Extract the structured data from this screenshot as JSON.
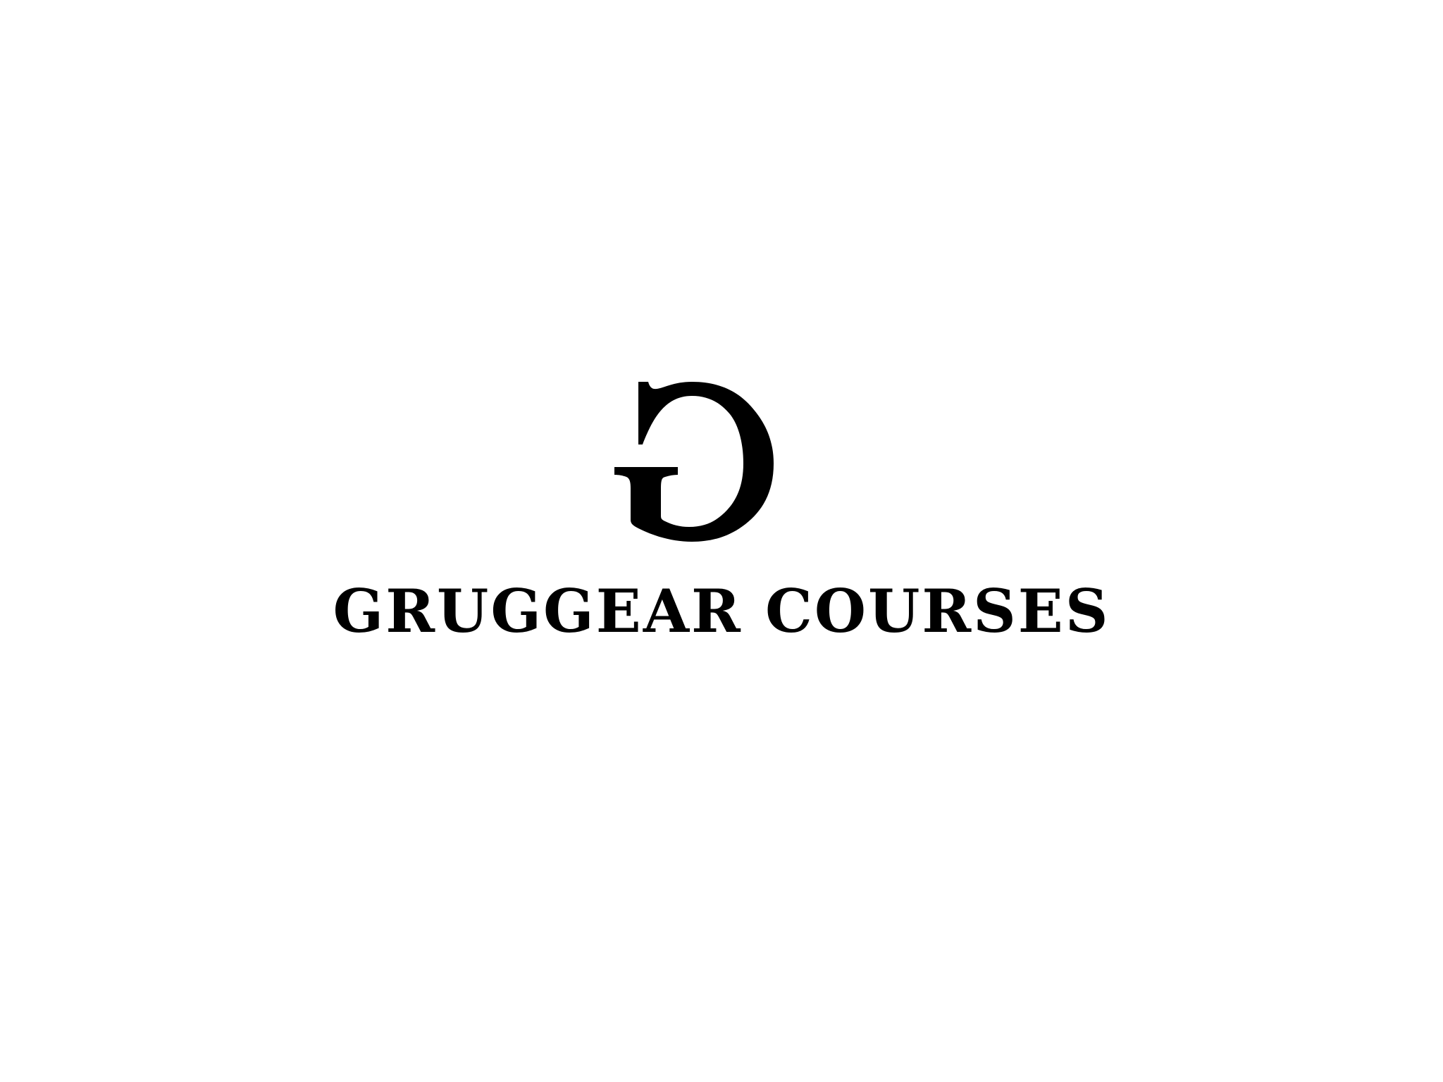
{
  "brand": {
    "name": "GRUGGEAR COURSES",
    "logo_icon": "g-monogram-icon",
    "ink_color": "#000000",
    "background_color": "#ffffff"
  }
}
